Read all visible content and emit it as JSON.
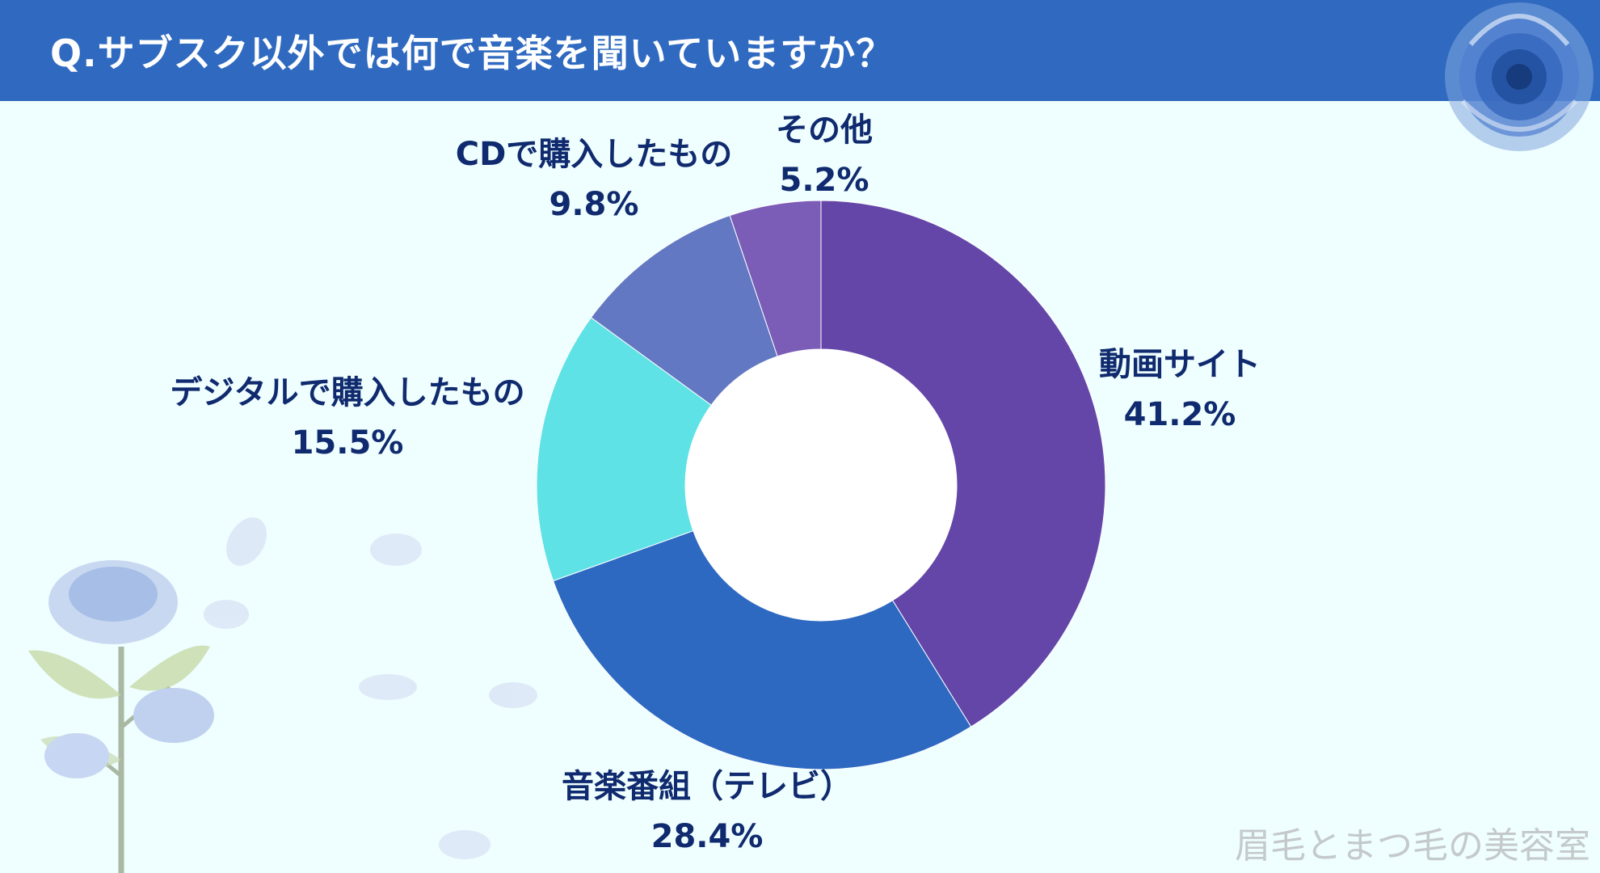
{
  "header": {
    "title": "Q.サブスク以外では何で音楽を聞いていますか？"
  },
  "chart_data": {
    "type": "pie",
    "donut": true,
    "legend": "none",
    "categories": [
      "動画サイト",
      "音楽番組（テレビ）",
      "デジタルで購入したもの",
      "CDで購入したもの",
      "その他"
    ],
    "values": [
      41.2,
      28.4,
      15.5,
      9.8,
      5.2
    ],
    "value_labels": [
      "41.2%",
      "28.4%",
      "15.5%",
      "9.8%",
      "5.2%"
    ],
    "colors": [
      "#6346a8",
      "#2e69c1",
      "#5ee2e6",
      "#6378c2",
      "#7b5cb6"
    ]
  },
  "watermark": "眉毛とまつ毛の美容室",
  "decorations": [
    "blue-rose-icon",
    "blue-rose-bouquet-icon",
    "petal-icon"
  ]
}
